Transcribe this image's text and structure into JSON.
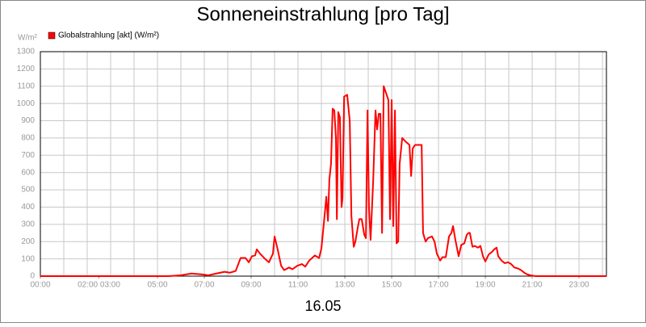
{
  "chart_data": {
    "type": "line",
    "title": "Sonneneinstrahlung [pro Tag]",
    "ylabel": "W/m²",
    "xlabel": "16.05",
    "x": [
      0,
      5.5,
      6.0,
      6.45,
      6.9,
      7.17,
      7.52,
      7.86,
      8.1,
      8.34,
      8.55,
      8.76,
      8.9,
      9.03,
      9.17,
      9.24,
      9.38,
      9.59,
      9.76,
      9.93,
      10.0,
      10.14,
      10.28,
      10.41,
      10.62,
      10.76,
      10.97,
      11.17,
      11.31,
      11.48,
      11.72,
      11.9,
      12.0,
      12.17,
      12.21,
      12.28,
      12.34,
      12.41,
      12.48,
      12.55,
      12.62,
      12.66,
      12.72,
      12.79,
      12.86,
      12.9,
      12.97,
      13.1,
      13.21,
      13.28,
      13.38,
      13.45,
      13.55,
      13.62,
      13.72,
      13.83,
      13.9,
      13.97,
      14.03,
      14.1,
      14.21,
      14.31,
      14.38,
      14.45,
      14.52,
      14.59,
      14.66,
      14.76,
      14.86,
      14.93,
      15.0,
      15.07,
      15.14,
      15.21,
      15.28,
      15.34,
      15.45,
      15.59,
      15.76,
      15.83,
      15.9,
      16.0,
      16.14,
      16.28,
      16.34,
      16.45,
      16.55,
      16.72,
      16.83,
      16.93,
      17.07,
      17.17,
      17.31,
      17.45,
      17.55,
      17.62,
      17.72,
      17.86,
      17.97,
      18.1,
      18.21,
      18.28,
      18.34,
      18.45,
      18.55,
      18.69,
      18.79,
      18.9,
      19.0,
      19.14,
      19.28,
      19.38,
      19.48,
      19.55,
      19.69,
      19.83,
      19.97,
      20.1,
      20.24,
      20.38,
      20.52,
      20.66,
      20.79,
      20.93,
      21.14,
      24.17
    ],
    "series": [
      {
        "name": "Globalstrahlung [akt] (W/m²)",
        "color": "#ff0000",
        "values": [
          0,
          0,
          5,
          15,
          10,
          5,
          15,
          25,
          20,
          30,
          105,
          105,
          80,
          115,
          120,
          155,
          130,
          100,
          80,
          130,
          230,
          150,
          60,
          35,
          50,
          40,
          60,
          70,
          55,
          90,
          120,
          105,
          160,
          400,
          460,
          320,
          560,
          650,
          970,
          960,
          800,
          330,
          950,
          920,
          400,
          450,
          1040,
          1050,
          900,
          350,
          170,
          200,
          280,
          330,
          330,
          240,
          220,
          960,
          400,
          210,
          550,
          960,
          850,
          940,
          940,
          250,
          1100,
          1060,
          1020,
          330,
          1020,
          290,
          960,
          190,
          200,
          650,
          800,
          780,
          760,
          580,
          740,
          760,
          760,
          760,
          250,
          200,
          220,
          230,
          200,
          130,
          90,
          110,
          110,
          230,
          250,
          290,
          210,
          115,
          180,
          190,
          240,
          250,
          250,
          170,
          175,
          165,
          175,
          115,
          85,
          125,
          140,
          155,
          165,
          115,
          90,
          75,
          80,
          70,
          50,
          45,
          35,
          20,
          10,
          5,
          0,
          0
        ]
      }
    ],
    "xlim": [
      0,
      24.17
    ],
    "ylim": [
      0,
      1300
    ],
    "xticks": [
      {
        "value": 0,
        "label": "00:00"
      },
      {
        "value": 2.5,
        "label": "02:00 03:00"
      },
      {
        "value": 5,
        "label": "05:00"
      },
      {
        "value": 7,
        "label": "07:00"
      },
      {
        "value": 9,
        "label": "09:00"
      },
      {
        "value": 11,
        "label": "11:00"
      },
      {
        "value": 13,
        "label": "13:00"
      },
      {
        "value": 15,
        "label": "15:00"
      },
      {
        "value": 17,
        "label": "17:00"
      },
      {
        "value": 19,
        "label": "19:00"
      },
      {
        "value": 21,
        "label": "21:00"
      },
      {
        "value": 23,
        "label": "23:00"
      }
    ],
    "xgrid": [
      0,
      1,
      2,
      3,
      4,
      5,
      6,
      7,
      8,
      9,
      10,
      11,
      12,
      13,
      14,
      15,
      16,
      17,
      18,
      19,
      20,
      21,
      22,
      23,
      24
    ],
    "yticks": [
      0,
      100,
      200,
      300,
      400,
      500,
      600,
      700,
      800,
      900,
      1000,
      1100,
      1200,
      1300
    ],
    "grid": true
  }
}
